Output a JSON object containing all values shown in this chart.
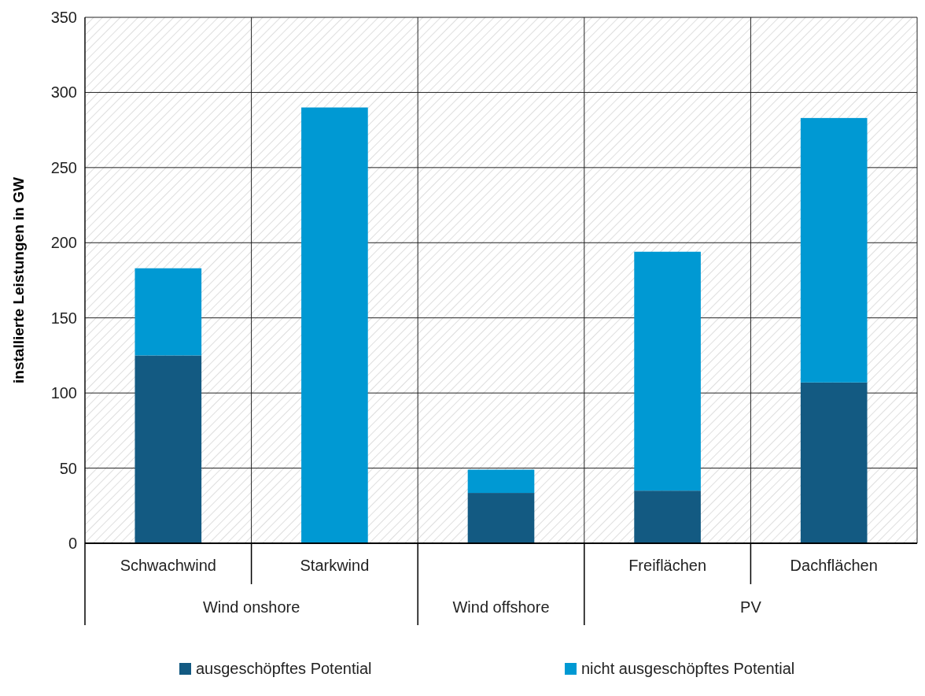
{
  "chart_data": {
    "type": "bar",
    "stacked": true,
    "ylabel": "installierte Leistungen in GW",
    "categories": [
      "Schwachwind",
      "Starkwind",
      null,
      "Freiflächen",
      "Dachflächen"
    ],
    "series": [
      {
        "name": "ausgeschöpftes Potential",
        "color": "#135a82",
        "values": [
          125,
          0,
          33.5,
          35,
          107
        ]
      },
      {
        "name": "nicht ausgeschöpftes  Potential",
        "color": "#0099d3",
        "values": [
          58,
          290,
          15.5,
          159,
          176
        ]
      }
    ],
    "ylim": [
      0,
      350
    ],
    "yticks": [
      0,
      50,
      100,
      150,
      200,
      250,
      300,
      350
    ],
    "grid": true,
    "legend": "bottom",
    "annotations": [
      "Wind onshore",
      "Wind offshore",
      "PV"
    ]
  }
}
